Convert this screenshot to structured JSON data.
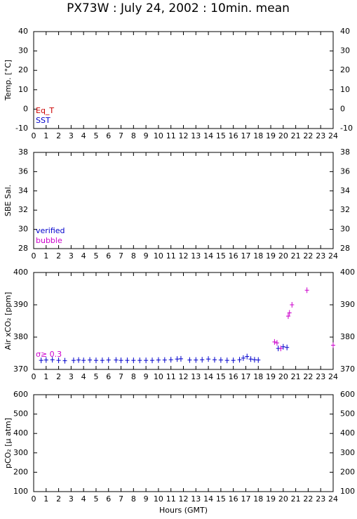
{
  "title": "PX73W : July 24, 2002 : 10min. mean",
  "chart_data": [
    {
      "type": "scatter",
      "ylabel": "Temp. [°C]",
      "xlim": [
        0,
        24
      ],
      "xticks": [
        0,
        1,
        2,
        3,
        4,
        5,
        6,
        7,
        8,
        9,
        10,
        11,
        12,
        13,
        14,
        15,
        16,
        17,
        18,
        19,
        20,
        21,
        22,
        23,
        24
      ],
      "ylim": [
        -10,
        40
      ],
      "yticks": [
        -10,
        0,
        10,
        20,
        30,
        40
      ],
      "series": [
        {
          "name": "Eq_T",
          "color": "#cc0000",
          "x": [],
          "values": []
        },
        {
          "name": "SST",
          "color": "#0000cc",
          "x": [],
          "values": []
        }
      ]
    },
    {
      "type": "scatter",
      "ylabel": "SBE Sal.",
      "xlim": [
        0,
        24
      ],
      "xticks": [
        0,
        1,
        2,
        3,
        4,
        5,
        6,
        7,
        8,
        9,
        10,
        11,
        12,
        13,
        14,
        15,
        16,
        17,
        18,
        19,
        20,
        21,
        22,
        23,
        24
      ],
      "ylim": [
        28,
        38
      ],
      "yticks": [
        28,
        30,
        32,
        34,
        36,
        38
      ],
      "series": [
        {
          "name": "verified",
          "color": "#0000cc",
          "x": [],
          "values": []
        },
        {
          "name": "bubble",
          "color": "#cc00cc",
          "x": [],
          "values": []
        }
      ]
    },
    {
      "type": "scatter",
      "ylabel": "Air xCO₂ [ppm]",
      "xlim": [
        0,
        24
      ],
      "xticks": [
        0,
        1,
        2,
        3,
        4,
        5,
        6,
        7,
        8,
        9,
        10,
        11,
        12,
        13,
        14,
        15,
        16,
        17,
        18,
        19,
        20,
        21,
        22,
        23,
        24
      ],
      "ylim": [
        370,
        400
      ],
      "yticks": [
        370,
        380,
        390,
        400
      ],
      "series": [
        {
          "color": "#0000cc",
          "x": [
            0.6,
            1.0,
            1.5,
            2.0,
            2.5,
            3.2,
            3.6,
            4.0,
            4.5,
            5.0,
            5.5,
            6.0,
            6.6,
            7.0,
            7.5,
            8.0,
            8.5,
            9.0,
            9.5,
            10.0,
            10.5,
            11.0,
            11.5,
            11.8,
            12.5,
            13.0,
            13.5,
            14.0,
            14.5,
            15.0,
            15.5,
            16.0,
            16.5,
            16.8,
            17.1,
            17.4,
            17.7,
            18.0,
            19.6,
            20.0,
            20.3
          ],
          "values": [
            372.8,
            372.9,
            373.0,
            372.8,
            372.7,
            372.8,
            372.9,
            372.8,
            372.9,
            372.8,
            372.8,
            372.9,
            372.9,
            372.8,
            372.8,
            372.8,
            372.8,
            372.8,
            372.8,
            372.9,
            372.9,
            373.0,
            373.2,
            373.3,
            372.9,
            372.9,
            373.0,
            373.2,
            373.0,
            372.9,
            372.8,
            372.8,
            373.0,
            373.5,
            374.0,
            373.2,
            373.0,
            372.9,
            376.5,
            377.0,
            376.8
          ]
        },
        {
          "name": "σ≥ 0.3",
          "color": "#cc00cc",
          "x": [
            19.3,
            19.5,
            19.8,
            20.4,
            20.5,
            20.7,
            21.9,
            24.0
          ],
          "values": [
            378.5,
            378.2,
            376.5,
            386.5,
            387.5,
            390.0,
            394.5,
            377.5
          ]
        }
      ]
    },
    {
      "type": "scatter",
      "ylabel": "pCO₂ [μ atm]",
      "xlabel": "Hours (GMT)",
      "xlim": [
        0,
        24
      ],
      "xticks": [
        0,
        1,
        2,
        3,
        4,
        5,
        6,
        7,
        8,
        9,
        10,
        11,
        12,
        13,
        14,
        15,
        16,
        17,
        18,
        19,
        20,
        21,
        22,
        23,
        24
      ],
      "ylim": [
        100,
        600
      ],
      "yticks": [
        100,
        200,
        300,
        400,
        500,
        600
      ],
      "series": []
    }
  ]
}
